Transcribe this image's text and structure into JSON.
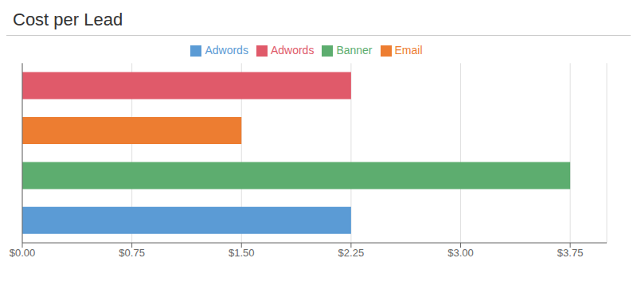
{
  "chart_data": {
    "type": "bar",
    "title": "Cost per Lead",
    "orientation": "horizontal",
    "stacked": true,
    "categories": [
      null,
      null,
      null,
      null
    ],
    "series": [
      {
        "name": "Adwords",
        "color": "#5B9BD5",
        "values": [
          2.25,
          null,
          null,
          null
        ]
      },
      {
        "name": "Banner",
        "color": "#5DAD6F",
        "values": [
          null,
          3.75,
          null,
          null
        ]
      },
      {
        "name": "Email",
        "color": "#ED7D31",
        "values": [
          null,
          null,
          1.5,
          null
        ]
      },
      {
        "name": "Adwords",
        "color": "#E05A6A",
        "values": [
          null,
          null,
          null,
          2.25
        ]
      }
    ],
    "xlim": [
      0,
      4.0
    ],
    "xticks": [
      {
        "value": 0.0,
        "label": "$0.00"
      },
      {
        "value": 0.75,
        "label": "$0.75"
      },
      {
        "value": 1.5,
        "label": "$1.50"
      },
      {
        "value": 2.25,
        "label": "$2.25"
      },
      {
        "value": 3.0,
        "label": "$3.00"
      },
      {
        "value": 3.75,
        "label": "$3.75"
      }
    ],
    "grid": true,
    "legend": "top",
    "tick_labels": "x"
  }
}
